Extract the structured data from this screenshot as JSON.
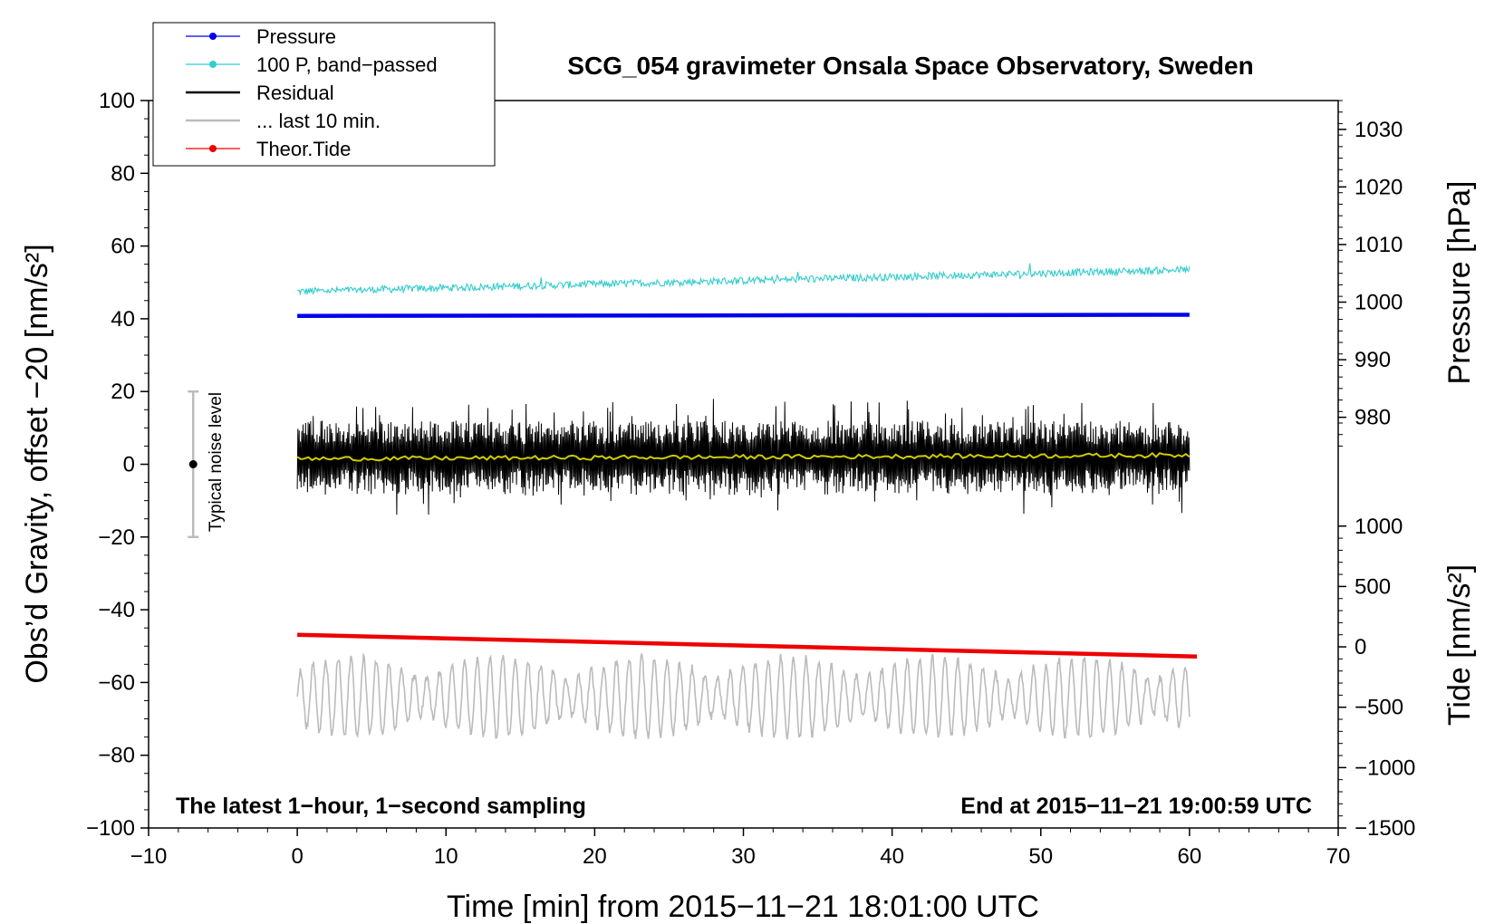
{
  "chart_data": {
    "type": "line",
    "title": "SCG_054 gravimeter Onsala Space Observatory, Sweden",
    "xlabel": "Time [min] from 2015−11−21 18:01:00 UTC",
    "ylabel_left": "Obs’d Gravity, offset −20 [nm/s²]",
    "ylabel_right_top": "Pressure [hPa]",
    "ylabel_right_bottom": "Tide [nm/s²]",
    "xlim": [
      -10,
      70
    ],
    "ylim": [
      -100,
      100
    ],
    "x_ticks": [
      -10,
      0,
      10,
      20,
      30,
      40,
      50,
      60,
      70
    ],
    "x_tick_labels": [
      "−10",
      "0",
      "10",
      "20",
      "30",
      "40",
      "50",
      "60",
      "70"
    ],
    "y_ticks": [
      -100,
      -80,
      -60,
      -40,
      -20,
      0,
      20,
      40,
      60,
      80,
      100
    ],
    "y_tick_labels": [
      "−100",
      "−80",
      "−60",
      "−40",
      "−20",
      "0",
      "20",
      "40",
      "60",
      "80",
      "100"
    ],
    "pressure_axis": {
      "ticks": [
        980,
        990,
        1000,
        1010,
        1020,
        1030
      ],
      "tick_labels": [
        "980",
        "990",
        "1000",
        "1010",
        "1020",
        "1030"
      ],
      "range_hpa": [
        975,
        1035
      ],
      "maps_to_left": [
        5,
        100
      ]
    },
    "tide_axis": {
      "ticks": [
        -1500,
        -1000,
        -500,
        0,
        500,
        1000
      ],
      "tick_labels": [
        "−1500",
        "−1000",
        "−500",
        "0",
        "500",
        "1000"
      ],
      "range": [
        -1500,
        1000
      ],
      "maps_to_left": [
        -100,
        -17
      ]
    },
    "series": [
      {
        "name": "Pressure",
        "color": "#0000ee",
        "style": "line-dot",
        "x_range": [
          0,
          60
        ],
        "hpa_start": 997.6,
        "hpa_end": 997.8
      },
      {
        "name": "100 P, band−passed",
        "color": "#33cccc",
        "style": "line-dot",
        "x_range": [
          0,
          60
        ],
        "value_start": 47.5,
        "value_end": 53.5,
        "noise_amplitude": 1.0
      },
      {
        "name": "Residual",
        "color": "#000000",
        "style": "line",
        "x_range": [
          0,
          60
        ],
        "mean": 2,
        "noise_amplitude": 10
      },
      {
        "name": "Residual mean",
        "color": "#cccc00",
        "style": "line",
        "x_range": [
          0,
          60
        ],
        "value_start": 1.5,
        "value_end": 2.5
      },
      {
        "name": "... last 10 min.",
        "color": "#bbbbbb",
        "style": "line",
        "x_range": [
          0,
          60
        ],
        "mean": -64,
        "noise_amplitude": 11
      },
      {
        "name": "Theor.Tide",
        "color": "#ee0000",
        "style": "line-dot",
        "x_range": [
          0,
          60.5
        ],
        "tide_start": 100,
        "tide_end": -80
      }
    ],
    "legend": {
      "placement": "top-left",
      "entries": [
        {
          "label": "Pressure",
          "color": "#0000ee",
          "marker": true
        },
        {
          "label": "100 P, band−passed",
          "color": "#33cccc",
          "marker": true
        },
        {
          "label": "Residual",
          "color": "#000000",
          "marker": false
        },
        {
          "label": "... last 10 min.",
          "color": "#bbbbbb",
          "marker": false
        },
        {
          "label": "Theor.Tide",
          "color": "#ee0000",
          "marker": true
        }
      ]
    },
    "noise_bar": {
      "label": "Typical noise level",
      "x": -7,
      "center": 0,
      "range": [
        -20,
        20
      ]
    },
    "annotations": {
      "bottom_left": "The latest 1−hour, 1−second sampling",
      "bottom_right": "End at 2015−11−21 19:00:59 UTC"
    },
    "grid": false
  }
}
